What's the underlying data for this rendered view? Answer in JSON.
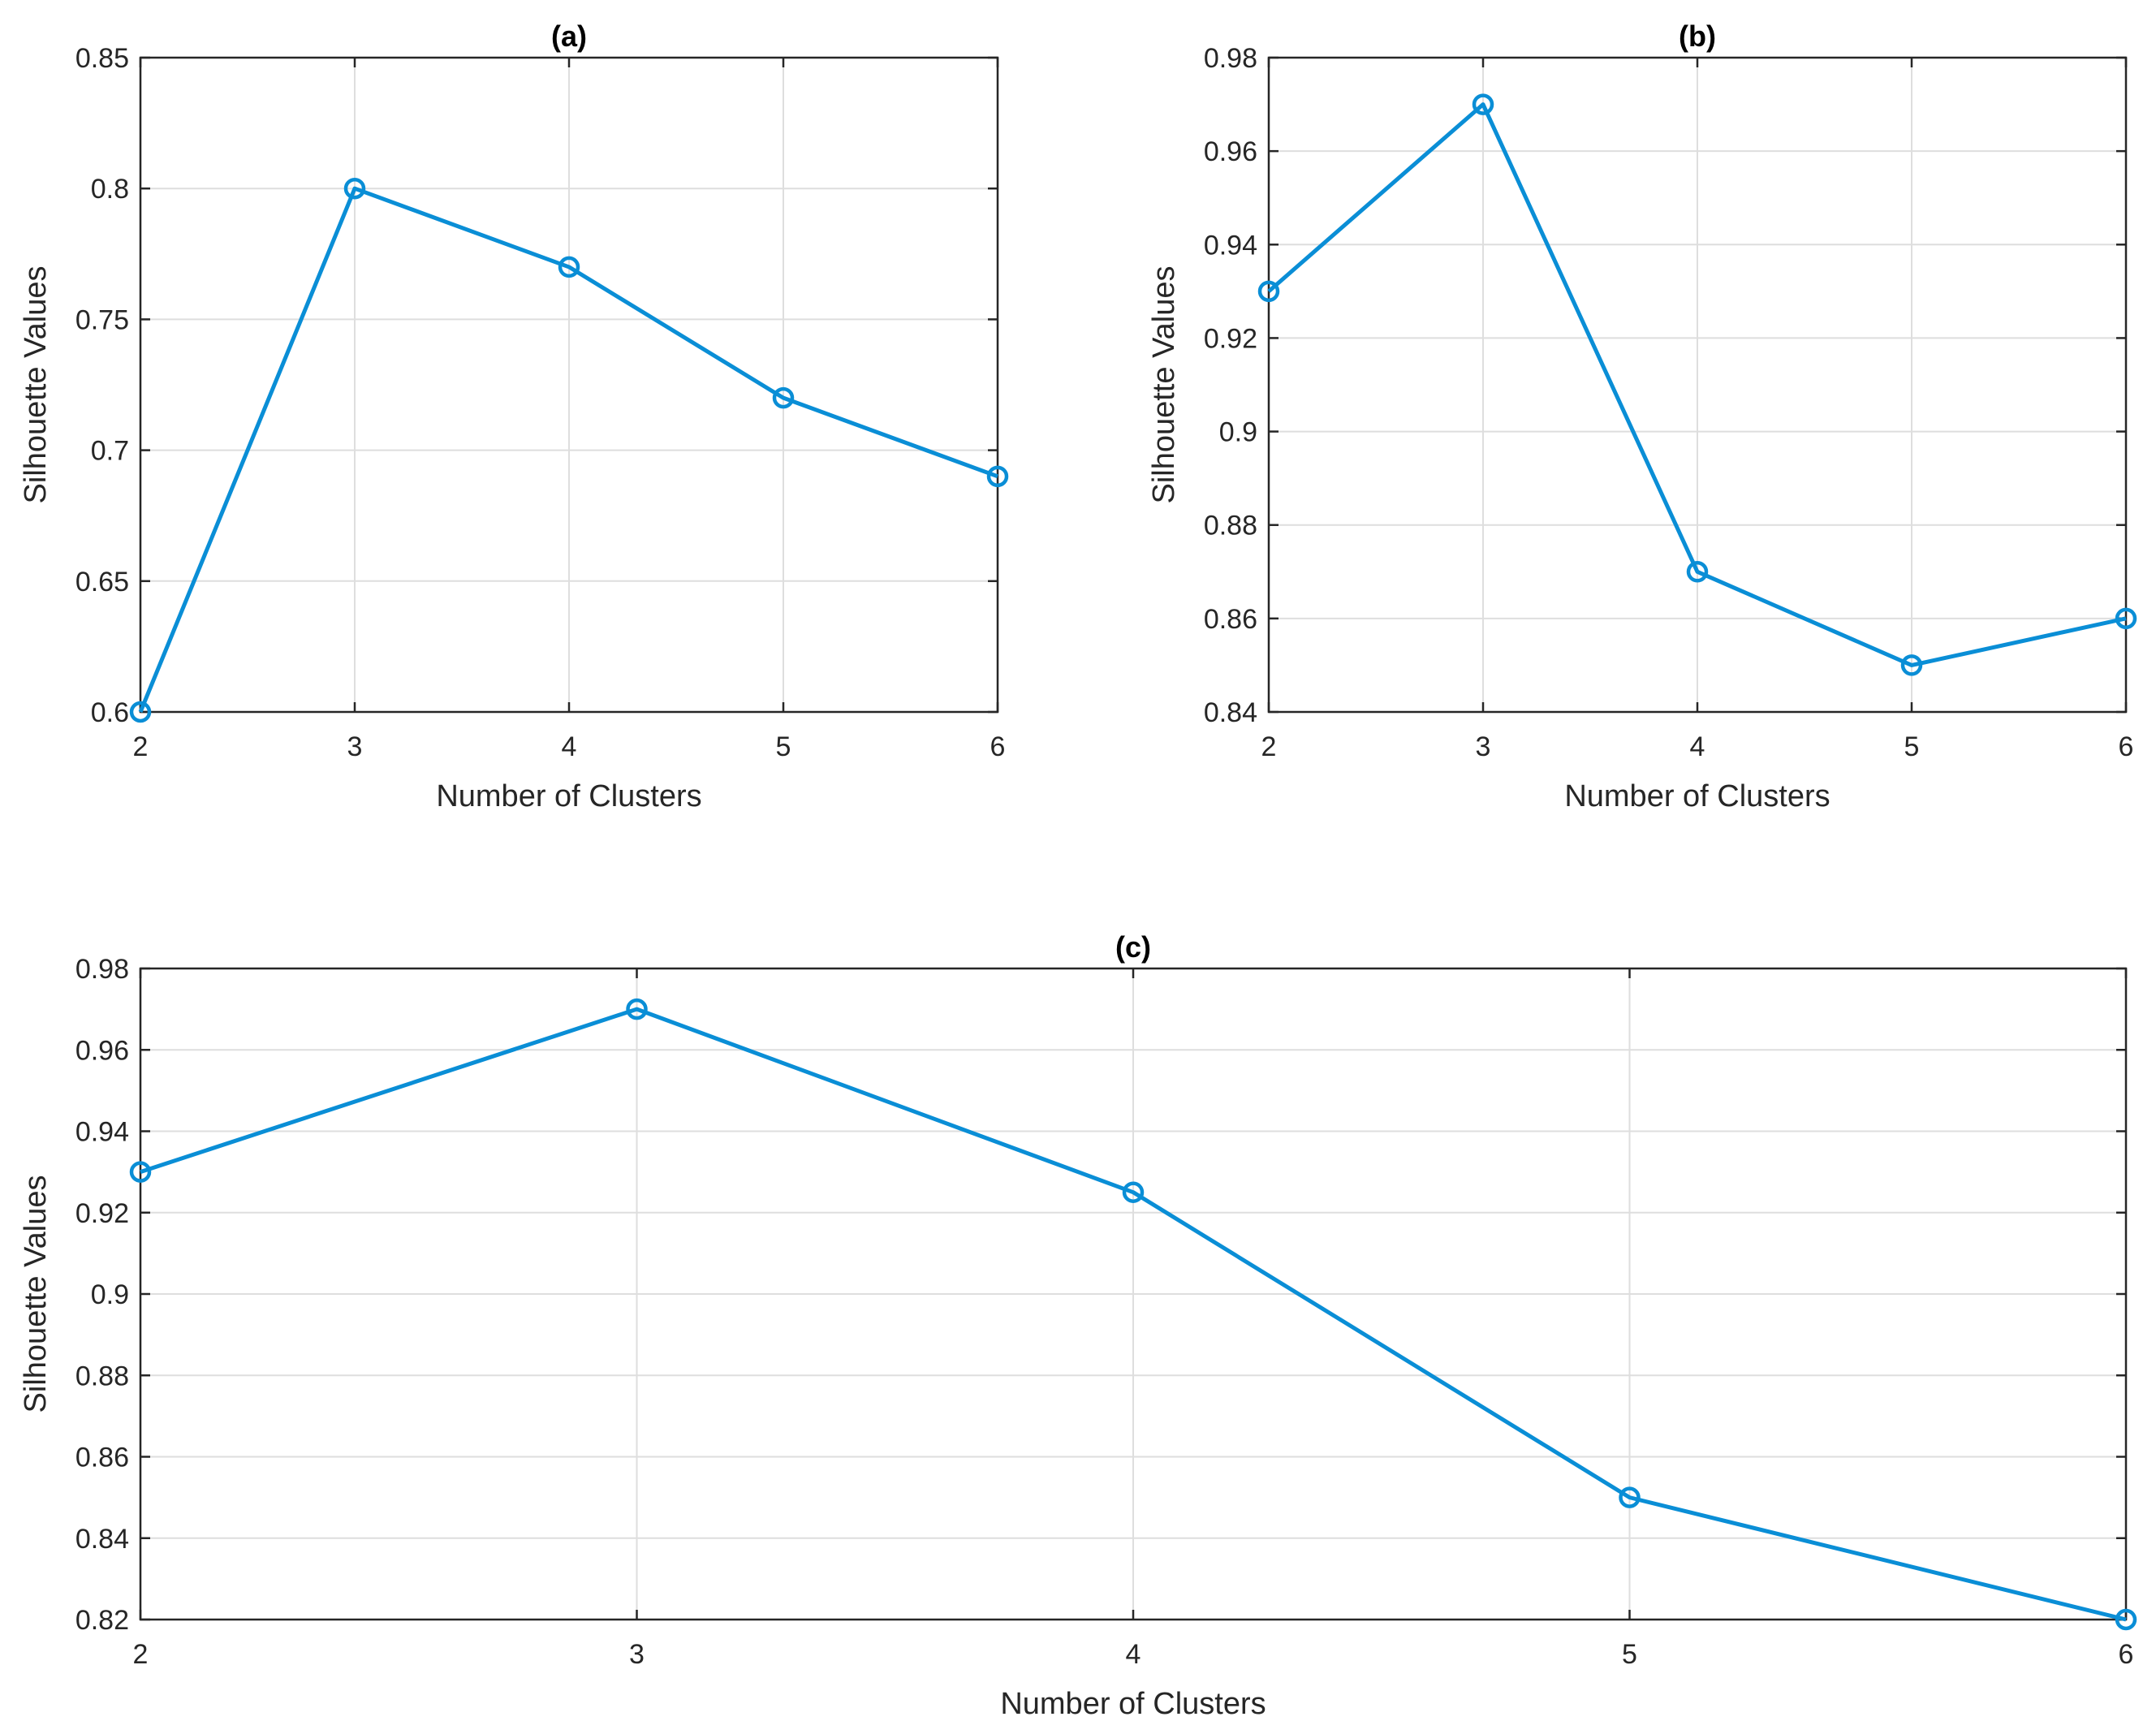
{
  "colors": {
    "series": "#0a8ed6"
  },
  "chart_data": [
    {
      "type": "line",
      "title": "(a)",
      "xlabel": "Number of Clusters",
      "ylabel": "Silhouette Values",
      "x": [
        2,
        3,
        4,
        5,
        6
      ],
      "xlim": [
        2,
        6
      ],
      "xticks": [
        2,
        3,
        4,
        5,
        6
      ],
      "xtick_labels": [
        "2",
        "3",
        "4",
        "5",
        "6"
      ],
      "ylim": [
        0.6,
        0.85
      ],
      "yticks": [
        0.6,
        0.65,
        0.7,
        0.75,
        0.8,
        0.85
      ],
      "ytick_labels": [
        "0.6",
        "0.65",
        "0.7",
        "0.75",
        "0.8",
        "0.85"
      ],
      "grid": true,
      "series": [
        {
          "name": "Silhouette",
          "values": [
            0.6,
            0.8,
            0.77,
            0.72,
            0.69
          ]
        }
      ]
    },
    {
      "type": "line",
      "title": "(b)",
      "xlabel": "Number of Clusters",
      "ylabel": "Silhouette Values",
      "x": [
        2,
        3,
        4,
        5,
        6
      ],
      "xlim": [
        2,
        6
      ],
      "xticks": [
        2,
        3,
        4,
        5,
        6
      ],
      "xtick_labels": [
        "2",
        "3",
        "4",
        "5",
        "6"
      ],
      "ylim": [
        0.84,
        0.98
      ],
      "yticks": [
        0.84,
        0.86,
        0.88,
        0.9,
        0.92,
        0.94,
        0.96,
        0.98
      ],
      "ytick_labels": [
        "0.84",
        "0.86",
        "0.88",
        "0.9",
        "0.92",
        "0.94",
        "0.96",
        "0.98"
      ],
      "grid": true,
      "series": [
        {
          "name": "Silhouette",
          "values": [
            0.93,
            0.97,
            0.87,
            0.85,
            0.86
          ]
        }
      ]
    },
    {
      "type": "line",
      "title": "(c)",
      "xlabel": "Number of Clusters",
      "ylabel": "Silhouette Values",
      "x": [
        2,
        3,
        4,
        5,
        6
      ],
      "xlim": [
        2,
        6
      ],
      "xticks": [
        2,
        3,
        4,
        5,
        6
      ],
      "xtick_labels": [
        "2",
        "3",
        "4",
        "5",
        "6"
      ],
      "ylim": [
        0.82,
        0.98
      ],
      "yticks": [
        0.82,
        0.84,
        0.86,
        0.88,
        0.9,
        0.92,
        0.94,
        0.96,
        0.98
      ],
      "ytick_labels": [
        "0.82",
        "0.84",
        "0.86",
        "0.88",
        "0.9",
        "0.92",
        "0.94",
        "0.96",
        "0.98"
      ],
      "grid": true,
      "series": [
        {
          "name": "Silhouette",
          "values": [
            0.93,
            0.97,
            0.925,
            0.85,
            0.82
          ]
        }
      ]
    }
  ]
}
